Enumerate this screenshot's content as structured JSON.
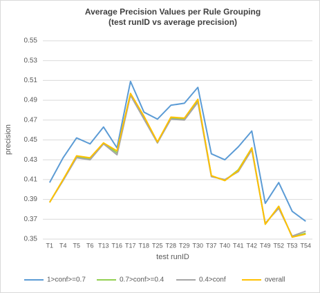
{
  "chart_data": {
    "type": "line",
    "title": "Average Precision Values per Rule Grouping",
    "subtitle": "(test runID vs average precision)",
    "x_label": "test runID",
    "y_label": "precision",
    "categories": [
      "T1",
      "T4",
      "T5",
      "T6",
      "T13",
      "T16",
      "T17",
      "T18",
      "T25",
      "T28",
      "T29",
      "T30",
      "T37",
      "T40",
      "T41",
      "T42",
      "T49",
      "T52",
      "T53",
      "T54"
    ],
    "series": [
      {
        "name": "1>conf>=0.7",
        "color": "#5b9bd5",
        "values": [
          0.407,
          0.432,
          0.452,
          0.446,
          0.463,
          0.442,
          0.509,
          0.478,
          0.471,
          0.485,
          0.487,
          0.503,
          0.436,
          0.43,
          0.443,
          0.459,
          0.386,
          0.407,
          0.378,
          0.368
        ]
      },
      {
        "name": "0.7>conf>=0.4",
        "color": "#92d050",
        "values": [
          0.387,
          0.41,
          0.433,
          0.431,
          0.447,
          0.437,
          0.496,
          0.473,
          0.447,
          0.472,
          0.471,
          0.49,
          0.414,
          0.409,
          0.42,
          0.442,
          0.365,
          0.383,
          0.352,
          0.356
        ]
      },
      {
        "name": "0.4>conf",
        "color": "#a5a5a5",
        "values": [
          0.387,
          0.409,
          0.432,
          0.43,
          0.446,
          0.435,
          0.495,
          0.471,
          0.447,
          0.471,
          0.47,
          0.488,
          0.413,
          0.41,
          0.418,
          0.44,
          0.366,
          0.381,
          0.353,
          0.358
        ]
      },
      {
        "name": "overall",
        "color": "#ffc000",
        "values": [
          0.387,
          0.41,
          0.434,
          0.432,
          0.447,
          0.439,
          0.497,
          0.474,
          0.448,
          0.473,
          0.472,
          0.491,
          0.414,
          0.409,
          0.419,
          0.442,
          0.365,
          0.383,
          0.352,
          0.355
        ]
      }
    ],
    "ylim": [
      0.35,
      0.55
    ],
    "yticks": [
      0.35,
      0.37,
      0.39,
      0.41,
      0.43,
      0.45,
      0.47,
      0.49,
      0.51,
      0.53,
      0.55
    ],
    "grid": true,
    "legend": "bottom"
  }
}
